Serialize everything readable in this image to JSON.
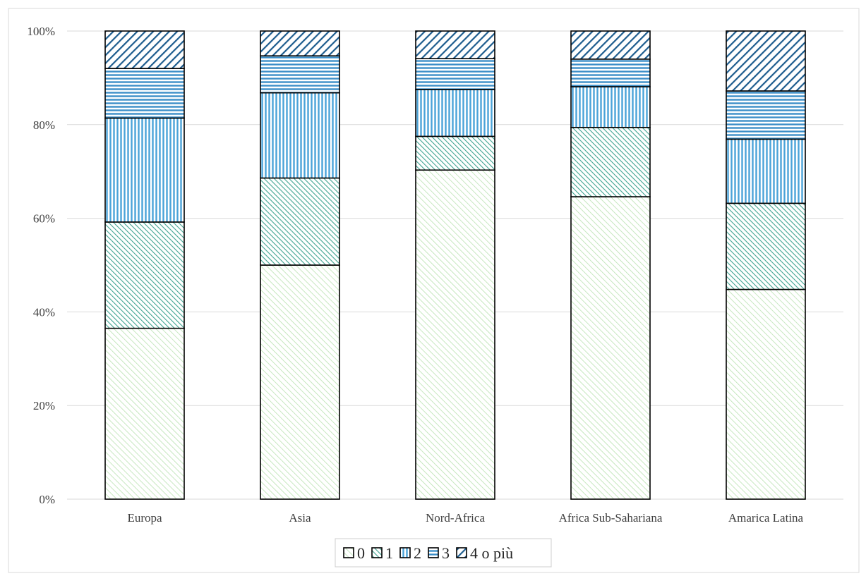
{
  "chart_data": {
    "type": "bar",
    "stacked": true,
    "categories": [
      "Europa",
      "Asia",
      "Nord-Africa",
      "Africa Sub-Sahariana",
      "Amarica Latina"
    ],
    "series": [
      {
        "name": "0",
        "values": [
          36.5,
          50.0,
          70.3,
          64.6,
          44.8
        ],
        "pattern": "diag-light",
        "color": "#9ad39a"
      },
      {
        "name": "1",
        "values": [
          22.7,
          18.6,
          7.2,
          14.8,
          18.4
        ],
        "pattern": "diag-dense",
        "color": "#5fb3a0"
      },
      {
        "name": "2",
        "values": [
          22.2,
          18.2,
          10.0,
          8.7,
          13.7
        ],
        "pattern": "vertical",
        "color": "#5aa9d6"
      },
      {
        "name": "3",
        "values": [
          10.6,
          7.9,
          6.6,
          5.9,
          10.3
        ],
        "pattern": "horizontal",
        "color": "#3f8fc7"
      },
      {
        "name": "4 o più",
        "values": [
          8.0,
          5.3,
          5.9,
          6.0,
          12.8
        ],
        "pattern": "diag-dark",
        "color": "#1f5f8f"
      }
    ],
    "y_ticks": [
      "0%",
      "20%",
      "40%",
      "60%",
      "80%",
      "100%"
    ],
    "ylim": [
      0,
      100
    ],
    "grid": true,
    "legend_position": "bottom"
  }
}
